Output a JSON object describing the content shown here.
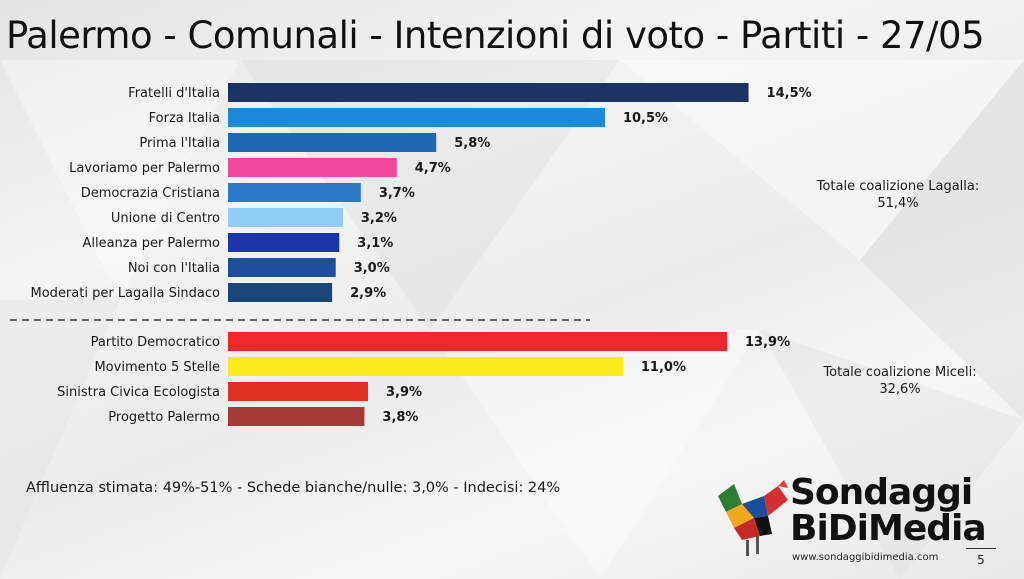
{
  "title": "Palermo - Comunali - Intenzioni di voto - Partiti - 27/05",
  "chart_data": {
    "type": "bar",
    "orientation": "horizontal",
    "value_format": "percent_it",
    "groups": [
      {
        "coalition_label": "Totale coalizione Lagalla:",
        "coalition_value": "51,4%",
        "bars": [
          {
            "label": "Fratelli d'Italia",
            "value": 14.5,
            "value_label": "14,5%",
            "color": "#1c3364"
          },
          {
            "label": "Forza Italia",
            "value": 10.5,
            "value_label": "10,5%",
            "color": "#1b8ad8"
          },
          {
            "label": "Prima l'Italia",
            "value": 5.8,
            "value_label": "5,8%",
            "color": "#1d68b4"
          },
          {
            "label": "Lavoriamo per Palermo",
            "value": 4.7,
            "value_label": "4,7%",
            "color": "#f0489a"
          },
          {
            "label": "Democrazia Cristiana",
            "value": 3.7,
            "value_label": "3,7%",
            "color": "#2a79c8"
          },
          {
            "label": "Unione di Centro",
            "value": 3.2,
            "value_label": "3,2%",
            "color": "#8fcdf5"
          },
          {
            "label": "Alleanza per Palermo",
            "value": 3.1,
            "value_label": "3,1%",
            "color": "#1b36a8"
          },
          {
            "label": "Noi con l'Italia",
            "value": 3.0,
            "value_label": "3,0%",
            "color": "#1e4f9c"
          },
          {
            "label": "Moderati per Lagalla Sindaco",
            "value": 2.9,
            "value_label": "2,9%",
            "color": "#1a4678"
          }
        ]
      },
      {
        "coalition_label": "Totale coalizione Miceli:",
        "coalition_value": "32,6%",
        "bars": [
          {
            "label": "Partito Democratico",
            "value": 13.9,
            "value_label": "13,9%",
            "color": "#f0272d"
          },
          {
            "label": "Movimento 5 Stelle",
            "value": 11.0,
            "value_label": "11,0%",
            "color": "#fbea19"
          },
          {
            "label": "Sinistra Civica Ecologista",
            "value": 3.9,
            "value_label": "3,9%",
            "color": "#dd3222"
          },
          {
            "label": "Progetto Palermo",
            "value": 3.8,
            "value_label": "3,8%",
            "color": "#a63a38"
          }
        ]
      }
    ]
  },
  "footer": "Affluenza stimata: 49%-51% - Schede bianche/nulle: 3,0% - Indecisi: 24%",
  "logo": {
    "line1": "Sondaggi",
    "line2": "BiDiMedia",
    "site": "www.sondaggibidimedia.com"
  },
  "page_number": "5"
}
